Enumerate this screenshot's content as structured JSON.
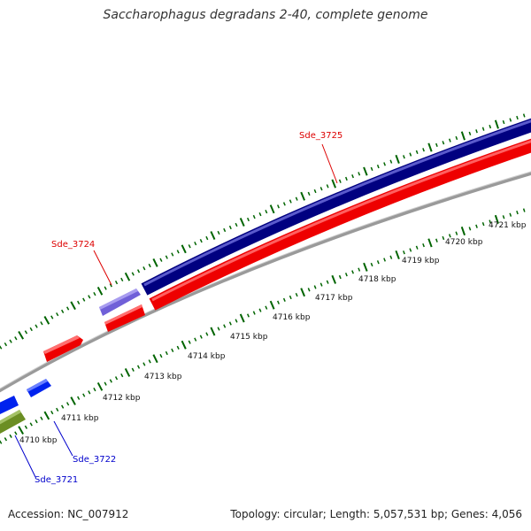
{
  "header": {
    "title": "Saccharophagus degradans 2-40, complete genome"
  },
  "footer": {
    "accession": "Accession: NC_007912",
    "topology": "Topology: circular; Length: 5,057,531 bp; Genes: 4,056"
  },
  "scale_labels": [
    "4710 kbp",
    "4711 kbp",
    "4712 kbp",
    "4713 kbp",
    "4714 kbp",
    "4715 kbp",
    "4716 kbp",
    "4717 kbp",
    "4718 kbp",
    "4719 kbp",
    "4720 kbp",
    "4721 kbp"
  ],
  "gene_labels": [
    {
      "name": "Sde_3725",
      "color": "#dd0000"
    },
    {
      "name": "Sde_3724",
      "color": "#dd0000"
    },
    {
      "name": "Sde_3722",
      "color": "#0000cc"
    },
    {
      "name": "Sde_3721",
      "color": "#0000cc"
    }
  ],
  "colors": {
    "forward_cds": "#000080",
    "forward_cds_light": "#7060d8",
    "reverse_cds": "#ee0000",
    "blue_cds": "#0022ee",
    "green_cds": "#6b8e23",
    "backbone": "#888888",
    "tick": "#006400"
  }
}
